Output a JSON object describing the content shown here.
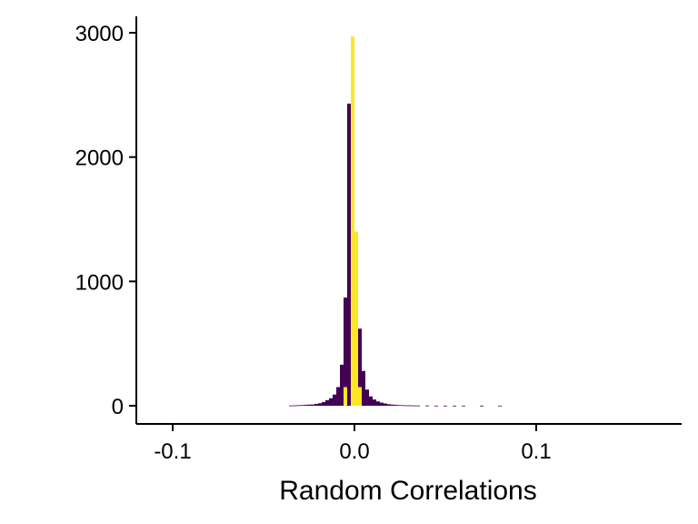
{
  "chart_data": {
    "type": "bar",
    "title": "",
    "xlabel": "Random Correlations",
    "ylabel": "",
    "xlim": [
      -0.12,
      0.18
    ],
    "ylim": [
      0,
      3000
    ],
    "x_ticks": [
      -0.1,
      0.0,
      0.1
    ],
    "x_tick_labels": [
      "-0.1",
      "0.0",
      "0.1"
    ],
    "y_ticks": [
      0,
      1000,
      2000,
      3000
    ],
    "y_tick_labels": [
      "0",
      "1000",
      "2000",
      "3000"
    ],
    "grid": false,
    "legend": "none",
    "bin_width": 0.002,
    "colors": {
      "highlight": "#FDE725",
      "other": "#440154",
      "axis": "#000000"
    },
    "bins": [
      {
        "x": -0.035,
        "count": 2
      },
      {
        "x": -0.033,
        "count": 3
      },
      {
        "x": -0.031,
        "count": 4
      },
      {
        "x": -0.029,
        "count": 5
      },
      {
        "x": -0.027,
        "count": 7
      },
      {
        "x": -0.025,
        "count": 9
      },
      {
        "x": -0.023,
        "count": 10
      },
      {
        "x": -0.021,
        "count": 15
      },
      {
        "x": -0.019,
        "count": 20
      },
      {
        "x": -0.017,
        "count": 30
      },
      {
        "x": -0.015,
        "count": 45
      },
      {
        "x": -0.013,
        "count": 60
      },
      {
        "x": -0.011,
        "count": 90
      },
      {
        "x": -0.009,
        "count": 150
      },
      {
        "x": -0.007,
        "count": 330
      },
      {
        "x": -0.005,
        "count": 870,
        "split": 150
      },
      {
        "x": -0.003,
        "count": 2430
      },
      {
        "x": -0.001,
        "count": 2970
      },
      {
        "x": 0.001,
        "count": 1400
      },
      {
        "x": 0.003,
        "count": 620,
        "split": 150
      },
      {
        "x": 0.005,
        "count": 280
      },
      {
        "x": 0.007,
        "count": 130
      },
      {
        "x": 0.009,
        "count": 75
      },
      {
        "x": 0.011,
        "count": 50
      },
      {
        "x": 0.013,
        "count": 35
      },
      {
        "x": 0.015,
        "count": 25
      },
      {
        "x": 0.017,
        "count": 18
      },
      {
        "x": 0.019,
        "count": 12
      },
      {
        "x": 0.021,
        "count": 9
      },
      {
        "x": 0.023,
        "count": 7
      },
      {
        "x": 0.025,
        "count": 5
      },
      {
        "x": 0.027,
        "count": 4
      },
      {
        "x": 0.029,
        "count": 3
      },
      {
        "x": 0.031,
        "count": 3
      },
      {
        "x": 0.033,
        "count": 2
      },
      {
        "x": 0.035,
        "count": 2
      },
      {
        "x": 0.04,
        "count": 2
      },
      {
        "x": 0.045,
        "count": 1
      },
      {
        "x": 0.05,
        "count": 1
      },
      {
        "x": 0.055,
        "count": 1
      },
      {
        "x": 0.06,
        "count": 1
      },
      {
        "x": 0.07,
        "count": 1
      },
      {
        "x": 0.08,
        "count": 1
      }
    ]
  }
}
